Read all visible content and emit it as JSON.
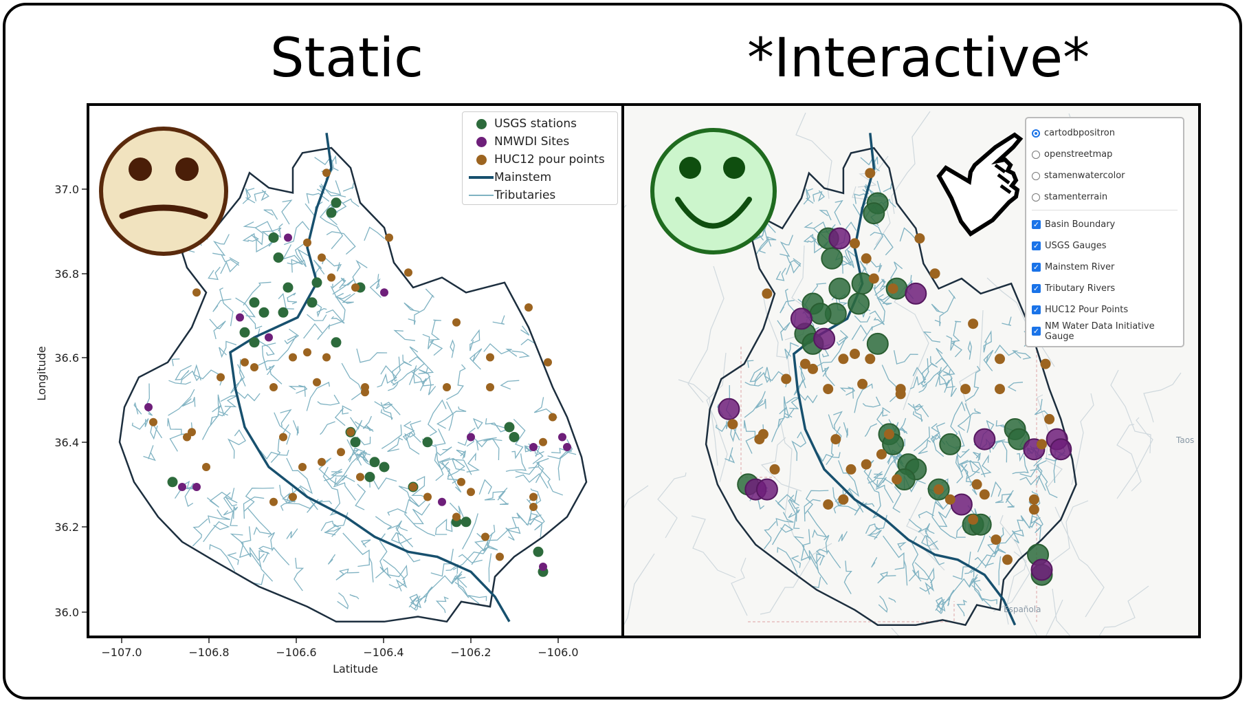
{
  "headings": {
    "static": "Static",
    "interactive": "*Interactive*"
  },
  "colors": {
    "usgs": "#2d6b3c",
    "nmwdi": "#6e1f7a",
    "huc12": "#9c6420",
    "mainstem": "#17506e",
    "tributary": "#7fb2c2",
    "boundary": "#1c2e3e",
    "sad_face_fill": "#f1e3bf",
    "sad_face_stroke": "#5a2a0c",
    "happy_face_fill": "#ccf5cc",
    "happy_face_stroke": "#1f6b1f"
  },
  "static_map": {
    "xlabel": "Latitude",
    "ylabel": "Longitude",
    "x_ticks": [
      "−107.0",
      "−106.8",
      "−106.6",
      "−106.4",
      "−106.2",
      "−106.0"
    ],
    "y_ticks": [
      "37.0",
      "36.8",
      "36.6",
      "36.4",
      "36.2",
      "36.0"
    ],
    "legend": [
      {
        "label": "USGS stations",
        "symbol": "usgs"
      },
      {
        "label": "NMWDI Sites",
        "symbol": "nmwdi"
      },
      {
        "label": "HUC12 pour points",
        "symbol": "huc12"
      },
      {
        "label": "Mainstem",
        "symbol": "mainstem"
      },
      {
        "label": "Tributaries",
        "symbol": "tributary"
      }
    ]
  },
  "interactive_map": {
    "base_layers": [
      {
        "label": "cartodbpositron",
        "selected": true
      },
      {
        "label": "openstreetmap",
        "selected": false
      },
      {
        "label": "stamenwatercolor",
        "selected": false
      },
      {
        "label": "stamenterrain",
        "selected": false
      }
    ],
    "overlays": [
      {
        "label": "Basin Boundary",
        "checked": true
      },
      {
        "label": "USGS Gauges",
        "checked": true
      },
      {
        "label": "Mainstem River",
        "checked": true
      },
      {
        "label": "Tributary Rivers",
        "checked": true
      },
      {
        "label": "HUC12 Pour Points",
        "checked": true
      },
      {
        "label": "NM Water Data Initiative Gauge",
        "checked": true
      }
    ],
    "place_labels": [
      "Taos",
      "Española"
    ]
  },
  "icons": {
    "sad": "sad-face-icon",
    "happy": "happy-face-icon",
    "pointer": "pointing-hand-icon"
  }
}
